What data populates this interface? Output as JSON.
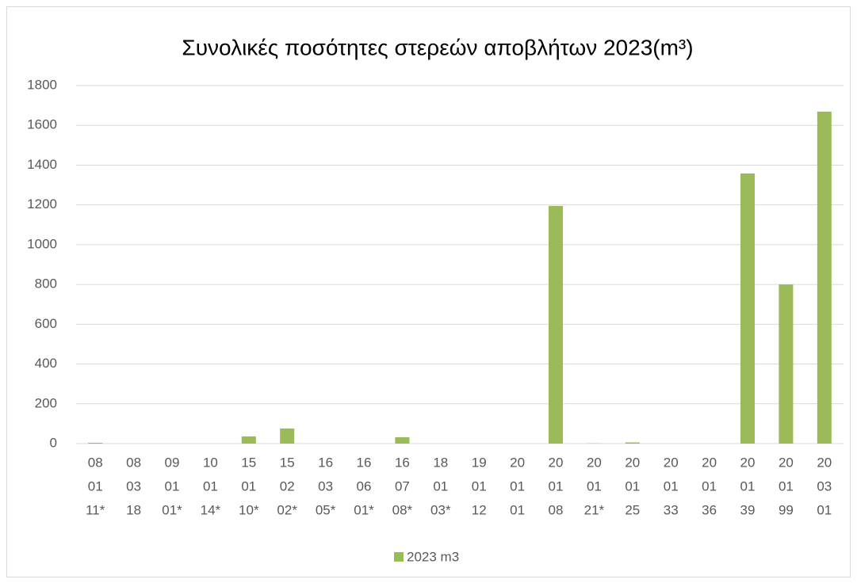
{
  "chart_data": {
    "type": "bar",
    "title": "Συνολικές ποσότητες στερεών αποβλήτων 2023(m³)",
    "categories": [
      [
        "08",
        "01",
        "11*"
      ],
      [
        "08",
        "03",
        "18"
      ],
      [
        "09",
        "01",
        "01*"
      ],
      [
        "10",
        "01",
        "14*"
      ],
      [
        "15",
        "01",
        "10*"
      ],
      [
        "15",
        "02",
        "02*"
      ],
      [
        "16",
        "03",
        "05*"
      ],
      [
        "16",
        "06",
        "01*"
      ],
      [
        "16",
        "07",
        "08*"
      ],
      [
        "18",
        "01",
        "03*"
      ],
      [
        "19",
        "01",
        "12"
      ],
      [
        "20",
        "01",
        "01"
      ],
      [
        "20",
        "01",
        "08"
      ],
      [
        "20",
        "01",
        "21*"
      ],
      [
        "20",
        "01",
        "25"
      ],
      [
        "20",
        "01",
        "33"
      ],
      [
        "20",
        "01",
        "36"
      ],
      [
        "20",
        "01",
        "39"
      ],
      [
        "20",
        "01",
        "99"
      ],
      [
        "20",
        "03",
        "01"
      ]
    ],
    "series": [
      {
        "name": "2023 m3",
        "color": "#9bbb59",
        "values": [
          4,
          0,
          0,
          0,
          36,
          76,
          0,
          0,
          32,
          0,
          0,
          0,
          1195,
          1,
          6,
          0,
          0,
          1358,
          800,
          1669
        ]
      }
    ],
    "ylim": [
      0,
      1800
    ],
    "yticks": [
      0,
      200,
      400,
      600,
      800,
      1000,
      1200,
      1400,
      1600,
      1800
    ],
    "grid": true,
    "legend": "bottom"
  }
}
